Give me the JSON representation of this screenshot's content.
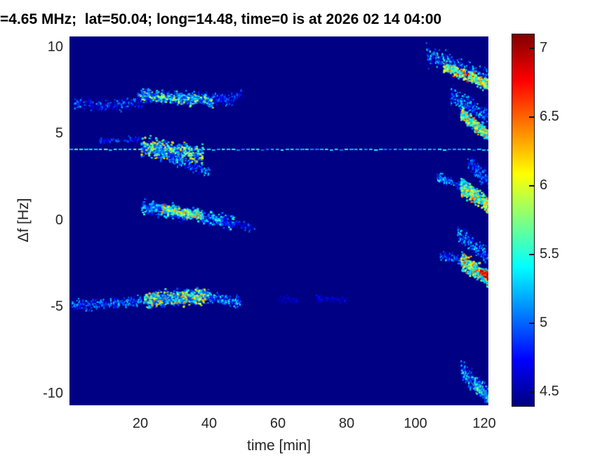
{
  "title": {
    "text": "=4.65 MHz;  lat=50.04; long=14.48, time=0 is at 2026 02 14 04:00"
  },
  "axes": {
    "xlabel": "time [min]",
    "ylabel": "Δf [Hz]",
    "x_ticks": [
      20,
      40,
      60,
      80,
      100,
      120
    ],
    "y_ticks": [
      10,
      5,
      0,
      -5,
      -10
    ]
  },
  "colorbar": {
    "ticks": [
      7,
      6.5,
      6,
      5.5,
      5,
      4.5
    ]
  },
  "colors": {
    "background": "#ffffff",
    "plot_base": "#000084",
    "tick_label": "#262626",
    "title": "#000000",
    "colormap_min": "#000080",
    "colormap_max": "#800000"
  },
  "chart_data": {
    "type": "heatmap",
    "title": "=4.65 MHz;  lat=50.04; long=14.48, time=0 is at 2026 02 14 04:00",
    "xlabel": "time [min]",
    "ylabel": "Δf [Hz]",
    "x_ticks": [
      20,
      40,
      60,
      80,
      100,
      120
    ],
    "y_ticks": [
      10,
      5,
      0,
      -5,
      -10
    ],
    "colorbar_ticks": [
      7,
      6.5,
      6,
      5.5,
      5,
      4.5
    ],
    "xlim": [
      -0.6,
      121.2
    ],
    "ylim": [
      -10.7,
      10.6
    ],
    "clim": [
      4.4,
      7.1
    ],
    "colormap": "jet",
    "grid": false,
    "legend": "colorbar-right",
    "seed": 20260214,
    "features": [
      {
        "name": "upper-band-7hz",
        "kind": "speckle",
        "t": [
          0,
          47
        ],
        "f": [
          6.8,
          7.1
        ],
        "wave": {
          "amp": 0.2,
          "period": 40,
          "phase": 3.0
        },
        "spread": 0.32,
        "n": 520,
        "v": [
          4.55,
          5.25
        ],
        "gamma": 1.6,
        "size": 2
      },
      {
        "name": "upper-band-7hz-core",
        "kind": "speckle",
        "t": [
          19,
          41
        ],
        "f": [
          7.35,
          6.85
        ],
        "spread": 0.3,
        "n": 330,
        "v": [
          4.8,
          6.05
        ],
        "gamma": 1.5,
        "size": 3
      },
      {
        "name": "upper-band-7hz-tail",
        "kind": "speckle",
        "t": [
          41,
          50
        ],
        "f": [
          7.0,
          7.3
        ],
        "spread": 0.3,
        "n": 90,
        "v": [
          4.55,
          5.1
        ],
        "gamma": 1.4,
        "size": 2
      },
      {
        "name": "reference-line-4hz",
        "kind": "dashes",
        "t": [
          0,
          121.2
        ],
        "f": 4.08,
        "v": [
          5.0,
          5.5
        ],
        "bright_t": [
          0,
          35
        ],
        "vboost": 0.35
      },
      {
        "name": "line-pre-dots",
        "kind": "speckle",
        "t": [
          8,
          20
        ],
        "f": [
          4.6,
          4.75
        ],
        "spread": 0.15,
        "n": 70,
        "v": [
          4.6,
          5.1
        ],
        "gamma": 1.3,
        "size": 2
      },
      {
        "name": "line-blob",
        "kind": "speckle",
        "t": [
          20,
          38
        ],
        "f": [
          4.25,
          3.8
        ],
        "spread": 0.5,
        "n": 520,
        "v": [
          4.8,
          6.3
        ],
        "gamma": 1.7,
        "size": 3
      },
      {
        "name": "line-below-tail",
        "kind": "speckle",
        "t": [
          28,
          40
        ],
        "f": [
          3.6,
          2.8
        ],
        "spread": 0.3,
        "n": 130,
        "v": [
          4.65,
          5.4
        ],
        "gamma": 1.6,
        "size": 2
      },
      {
        "name": "mid-band-0hz",
        "kind": "speckle",
        "t": [
          20,
          47
        ],
        "f": [
          0.85,
          -0.1
        ],
        "spread": 0.38,
        "n": 480,
        "v": [
          4.7,
          5.6
        ],
        "gamma": 1.6,
        "size": 3
      },
      {
        "name": "mid-band-0hz-core",
        "kind": "speckle",
        "t": [
          26,
          38
        ],
        "f": [
          0.7,
          0.3
        ],
        "spread": 0.24,
        "n": 260,
        "v": [
          5.2,
          6.6
        ],
        "gamma": 1.8,
        "size": 3
      },
      {
        "name": "mid-band-tail",
        "kind": "speckle",
        "t": [
          44,
          53
        ],
        "f": [
          -0.05,
          -0.35
        ],
        "spread": 0.25,
        "n": 60,
        "v": [
          4.55,
          5.05
        ],
        "gamma": 1.4,
        "size": 2
      },
      {
        "name": "lower-band-left",
        "kind": "speckle",
        "t": [
          0,
          21
        ],
        "f": [
          -4.9,
          -4.6
        ],
        "spread": 0.28,
        "n": 330,
        "v": [
          4.6,
          5.4
        ],
        "gamma": 1.6,
        "size": 2
      },
      {
        "name": "lower-band-core",
        "kind": "speckle",
        "t": [
          21,
          40
        ],
        "f": [
          -4.55,
          -4.35
        ],
        "spread": 0.42,
        "n": 600,
        "v": [
          4.9,
          6.5
        ],
        "gamma": 1.9,
        "size": 3
      },
      {
        "name": "lower-band-tail",
        "kind": "speckle",
        "t": [
          40,
          49
        ],
        "f": [
          -4.4,
          -4.75
        ],
        "spread": 0.3,
        "n": 150,
        "v": [
          4.7,
          5.5
        ],
        "gamma": 1.6,
        "size": 2
      },
      {
        "name": "faint-smudge-1",
        "kind": "speckle",
        "t": [
          60,
          66
        ],
        "f": [
          -4.55,
          -4.55
        ],
        "spread": 0.2,
        "n": 45,
        "v": [
          4.48,
          4.75
        ],
        "gamma": 1.2,
        "size": 2
      },
      {
        "name": "faint-smudge-2",
        "kind": "speckle",
        "t": [
          71,
          80
        ],
        "f": [
          -4.5,
          -4.6
        ],
        "spread": 0.2,
        "n": 70,
        "v": [
          4.48,
          4.8
        ],
        "gamma": 1.2,
        "size": 2
      },
      {
        "name": "late-streak-9hz",
        "kind": "speckle",
        "t": [
          103,
          121.2
        ],
        "f": [
          9.6,
          8.1
        ],
        "spread": 0.55,
        "n": 380,
        "v": [
          4.65,
          5.6
        ],
        "gamma": 1.6,
        "size": 2
      },
      {
        "name": "late-streak-9hz-core",
        "kind": "speckle",
        "t": [
          108,
          121.2
        ],
        "f": [
          8.9,
          7.85
        ],
        "spread": 0.3,
        "n": 320,
        "v": [
          5.3,
          6.85
        ],
        "gamma": 1.6,
        "size": 3
      },
      {
        "name": "late-streak-6hz",
        "kind": "speckle",
        "t": [
          110,
          121.2
        ],
        "f": [
          7.3,
          6.0
        ],
        "spread": 0.5,
        "n": 260,
        "v": [
          4.65,
          5.5
        ],
        "gamma": 1.5,
        "size": 2
      },
      {
        "name": "late-streak-6hz-core",
        "kind": "speckle",
        "t": [
          113,
          121.2
        ],
        "f": [
          6.2,
          4.9
        ],
        "spread": 0.35,
        "n": 300,
        "v": [
          5.2,
          6.55
        ],
        "gamma": 1.7,
        "size": 3
      },
      {
        "name": "late-streak-2hz-lead",
        "kind": "speckle",
        "t": [
          106,
          115
        ],
        "f": [
          2.5,
          1.95
        ],
        "spread": 0.25,
        "n": 130,
        "v": [
          4.75,
          5.5
        ],
        "gamma": 1.5,
        "size": 2
      },
      {
        "name": "late-streak-2hz-upper",
        "kind": "speckle",
        "t": [
          115,
          121.2
        ],
        "f": [
          3.4,
          2.3
        ],
        "spread": 0.45,
        "n": 150,
        "v": [
          4.6,
          5.3
        ],
        "gamma": 1.4,
        "size": 2
      },
      {
        "name": "late-streak-2hz-core",
        "kind": "speckle",
        "t": [
          113,
          121.2
        ],
        "f": [
          2.0,
          0.9
        ],
        "spread": 0.45,
        "n": 340,
        "v": [
          5.2,
          6.6
        ],
        "gamma": 1.7,
        "size": 3
      },
      {
        "name": "late-streak-m3hz-upper",
        "kind": "speckle",
        "t": [
          112,
          121.2
        ],
        "f": [
          -0.7,
          -2.1
        ],
        "spread": 0.5,
        "n": 210,
        "v": [
          4.65,
          5.5
        ],
        "gamma": 1.5,
        "size": 2
      },
      {
        "name": "late-streak-m3hz-lead",
        "kind": "speckle",
        "t": [
          107,
          114
        ],
        "f": [
          -2.0,
          -2.4
        ],
        "spread": 0.25,
        "n": 90,
        "v": [
          4.65,
          5.3
        ],
        "gamma": 1.4,
        "size": 2
      },
      {
        "name": "late-streak-m3hz-core",
        "kind": "speckle",
        "t": [
          113,
          121.2
        ],
        "f": [
          -2.3,
          -3.4
        ],
        "spread": 0.45,
        "n": 320,
        "v": [
          5.2,
          6.6
        ],
        "gamma": 1.7,
        "size": 3
      },
      {
        "name": "late-streak-m3hz-hot",
        "kind": "speckle",
        "t": [
          118.5,
          121.2
        ],
        "f": [
          -2.9,
          -3.3
        ],
        "spread": 0.18,
        "n": 40,
        "v": [
          6.5,
          7.05
        ],
        "gamma": 1.0,
        "size": 3
      },
      {
        "name": "late-streak-m9hz",
        "kind": "speckle",
        "t": [
          113,
          121.2
        ],
        "f": [
          -8.6,
          -10.2
        ],
        "spread": 0.5,
        "n": 300,
        "v": [
          4.6,
          5.7
        ],
        "gamma": 1.7,
        "size": 2
      },
      {
        "name": "late-streak-m9hz-core",
        "kind": "speckle",
        "t": [
          117,
          121.2
        ],
        "f": [
          -9.4,
          -10.3
        ],
        "spread": 0.3,
        "n": 120,
        "v": [
          4.9,
          5.9
        ],
        "gamma": 1.6,
        "size": 2
      }
    ]
  }
}
